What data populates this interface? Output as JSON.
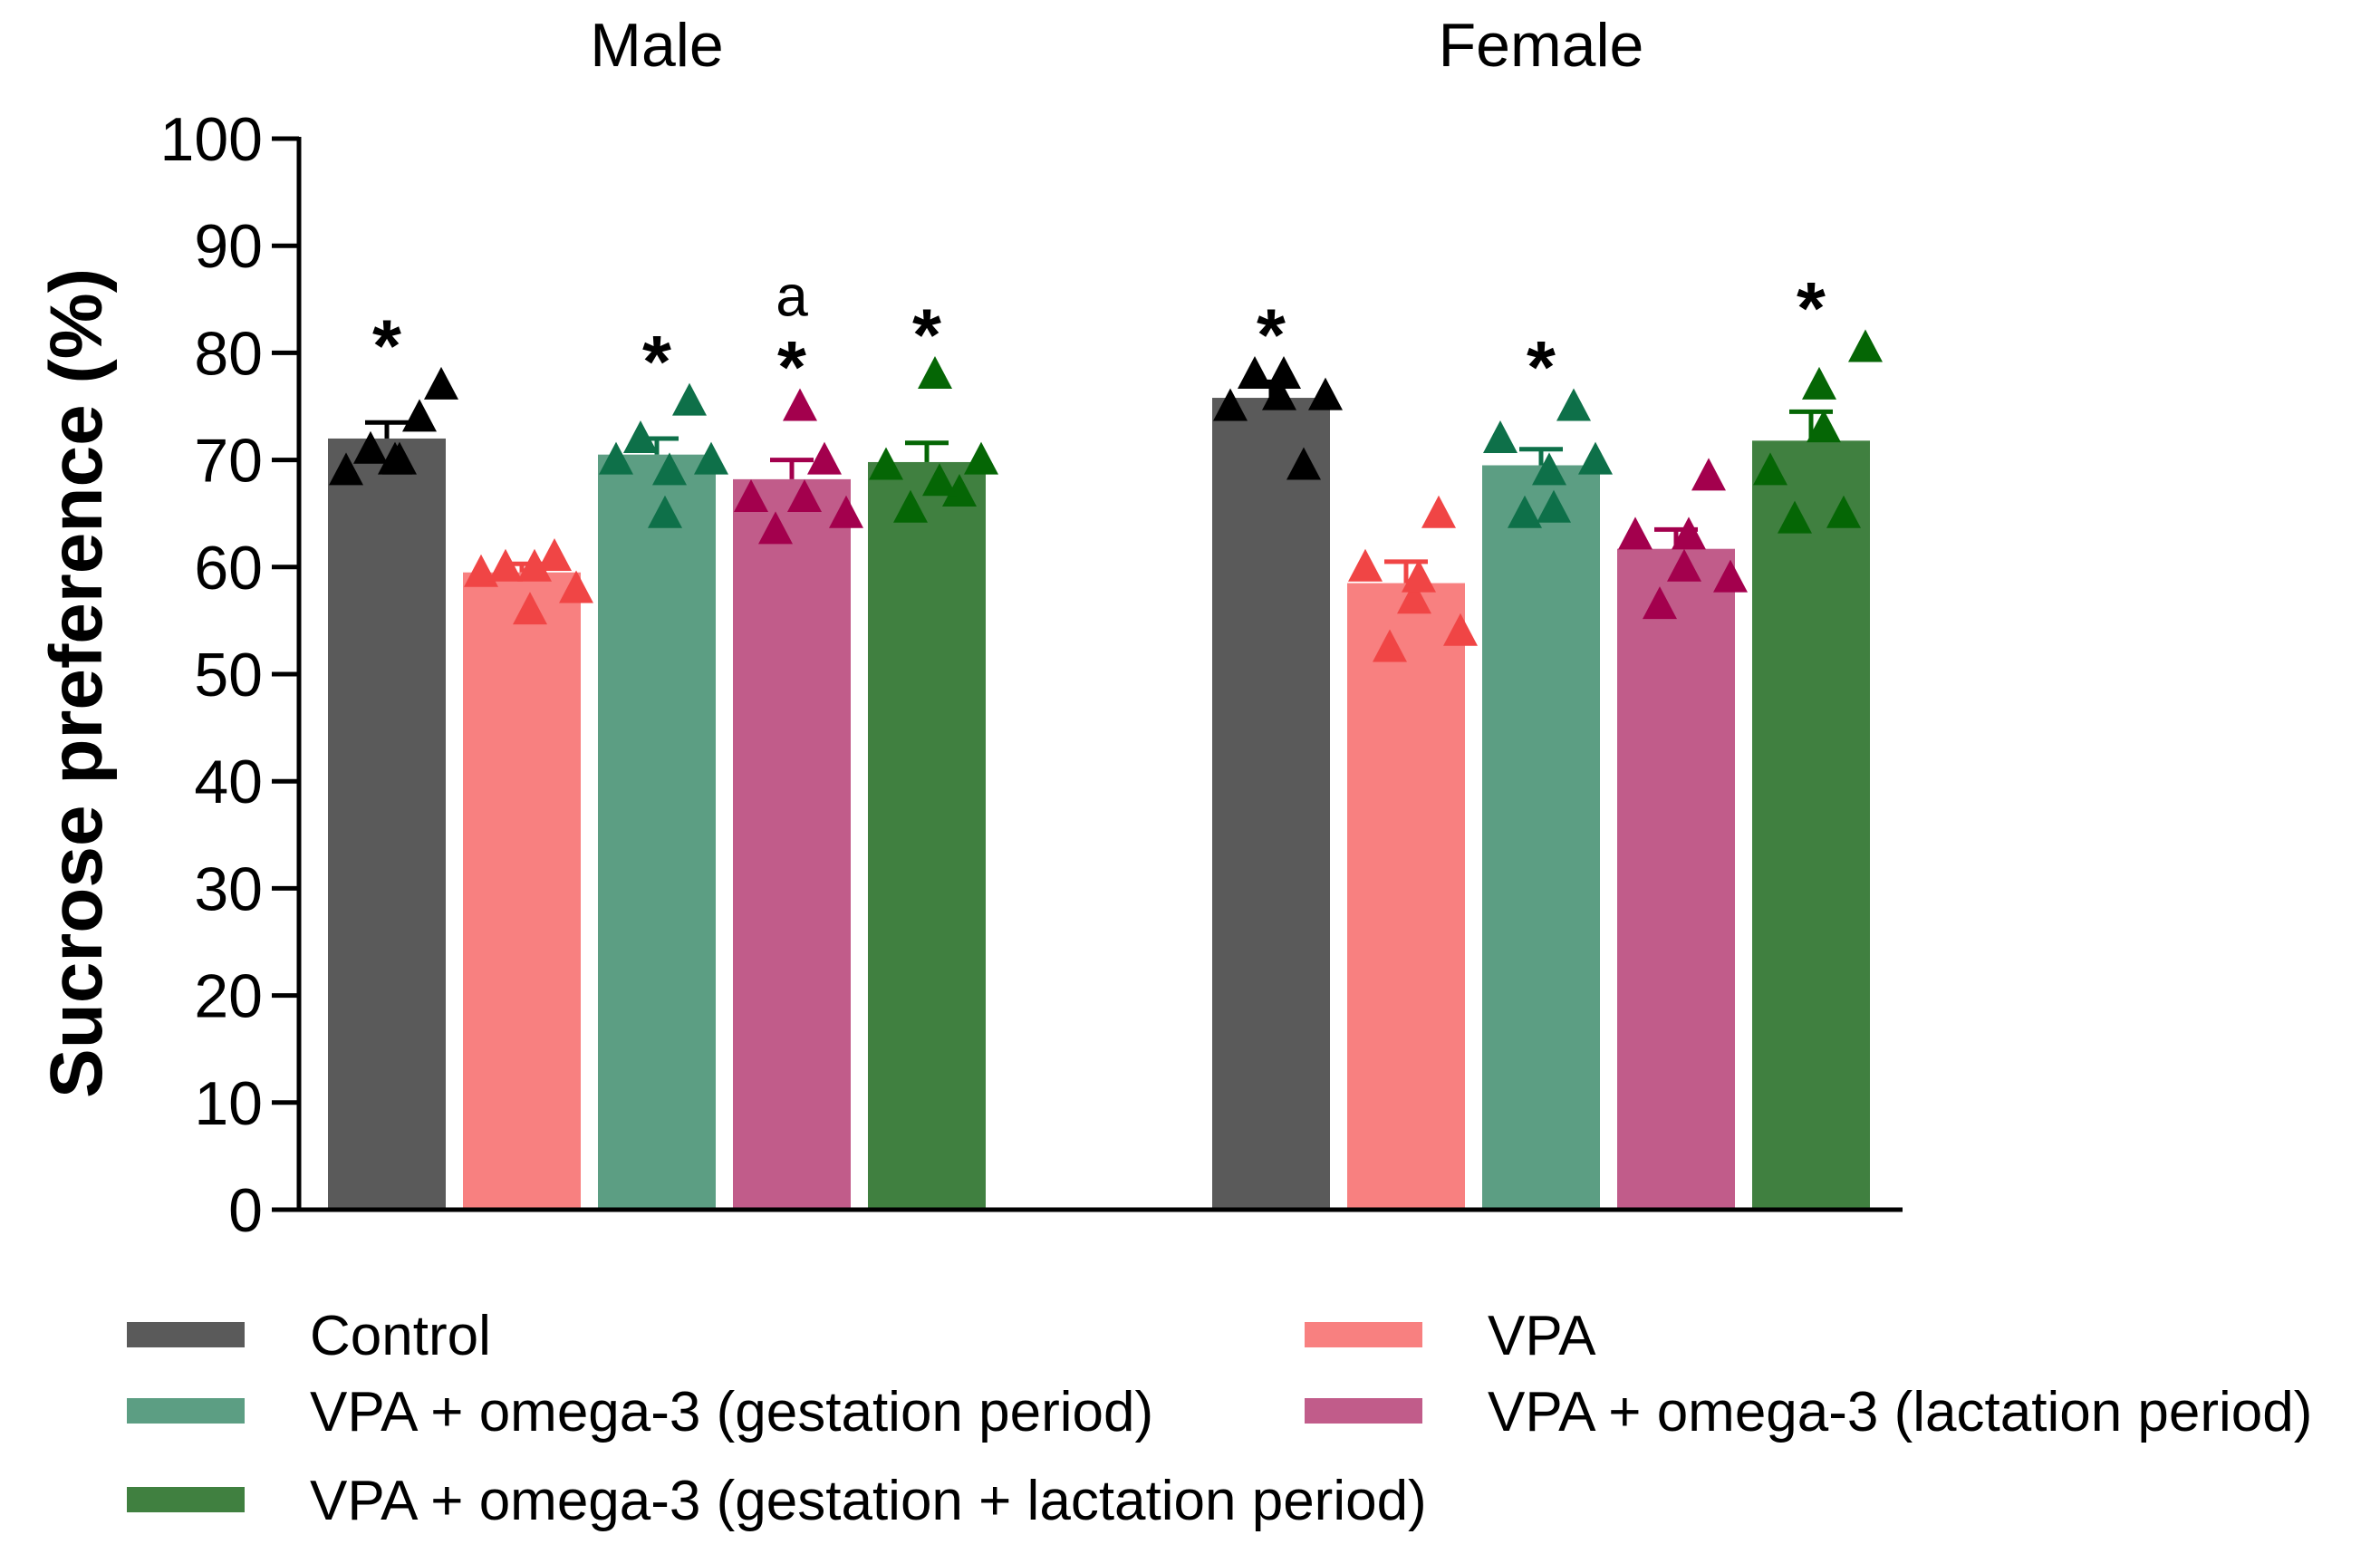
{
  "chart_data": {
    "type": "bar",
    "ylabel": "Sucrose preference (%)",
    "ylim": [
      0,
      100
    ],
    "yticks": [
      0,
      10,
      20,
      30,
      40,
      50,
      60,
      70,
      80,
      90,
      100
    ],
    "groups": [
      "Male",
      "Female"
    ],
    "series": [
      {
        "name": "Control",
        "color": "#5a5a5a",
        "marker_color": "#000000",
        "values": [
          72,
          75.8
        ],
        "sem": [
          1.5,
          1.5
        ],
        "points": [
          [
            69,
            71,
            70,
            74,
            77,
            70
          ],
          [
            75,
            78,
            76,
            69.5,
            76,
            78
          ]
        ],
        "stars": [
          "*",
          "*"
        ],
        "letters": [
          "",
          ""
        ]
      },
      {
        "name": "VPA",
        "color": "#f88080",
        "marker_color": "#f04545",
        "values": [
          59.5,
          58.5
        ],
        "sem": [
          0.8,
          2.0
        ],
        "points": [
          [
            59.5,
            60,
            56,
            61,
            58,
            60
          ],
          [
            60,
            52.5,
            57,
            65,
            54,
            59
          ]
        ],
        "stars": [
          "",
          ""
        ],
        "letters": [
          "",
          ""
        ]
      },
      {
        "name": "VPA + omega-3 (gestation period)",
        "color": "#5c9e83",
        "marker_color": "#0e7049",
        "values": [
          70.5,
          69.5
        ],
        "sem": [
          1.5,
          1.5
        ],
        "points": [
          [
            70,
            72,
            65,
            75.5,
            70,
            69
          ],
          [
            72,
            65,
            69,
            75,
            70,
            65.5
          ]
        ],
        "stars": [
          "*",
          "*"
        ],
        "letters": [
          "",
          ""
        ]
      },
      {
        "name": "VPA + omega-3 (lactation period)",
        "color": "#c15c8a",
        "marker_color": "#a3004d",
        "values": [
          68.2,
          61.7
        ],
        "sem": [
          1.8,
          1.8
        ],
        "points": [
          [
            66.5,
            63.5,
            75,
            70,
            65,
            66.5
          ],
          [
            63,
            56.5,
            60,
            68.5,
            59,
            63
          ]
        ],
        "stars": [
          "*",
          ""
        ],
        "letters": [
          "a",
          ""
        ]
      },
      {
        "name": "VPA + omega-3 (gestation + lactation period)",
        "color": "#408040",
        "marker_color": "#056605",
        "values": [
          69.8,
          71.8
        ],
        "sem": [
          1.8,
          2.7
        ],
        "points": [
          [
            69.5,
            65.5,
            78,
            67,
            70,
            68
          ],
          [
            69,
            64.5,
            77,
            65,
            80.5,
            73
          ]
        ],
        "stars": [
          "*",
          "*"
        ],
        "letters": [
          "",
          ""
        ]
      }
    ],
    "legend_position": "bottom"
  }
}
